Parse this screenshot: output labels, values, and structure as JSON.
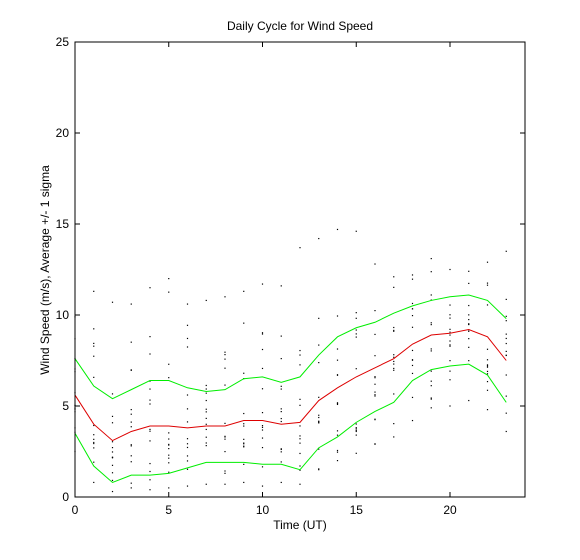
{
  "chart_data": {
    "type": "line",
    "title": "Daily Cycle for Wind Speed",
    "xlabel": "Time (UT)",
    "ylabel": "Wind Speed (m/s), Average +/- 1 sigma",
    "xlim": [
      0,
      24
    ],
    "ylim": [
      0,
      25
    ],
    "xticks": [
      0,
      5,
      10,
      15,
      20
    ],
    "yticks": [
      0,
      5,
      10,
      15,
      20,
      25
    ],
    "x": [
      0,
      1,
      2,
      3,
      4,
      5,
      6,
      7,
      8,
      9,
      10,
      11,
      12,
      13,
      14,
      15,
      16,
      17,
      18,
      19,
      20,
      21,
      22,
      23
    ],
    "series": [
      {
        "name": "",
        "color": "#00ee00",
        "values": [
          7.6,
          6.1,
          5.4,
          5.9,
          6.4,
          6.4,
          6.0,
          5.8,
          5.9,
          6.5,
          6.6,
          6.3,
          6.6,
          7.8,
          8.8,
          9.3,
          9.6,
          10.1,
          10.5,
          10.8,
          11.0,
          11.1,
          10.8,
          9.8
        ]
      },
      {
        "name": "",
        "color": "#dd0000",
        "values": [
          5.6,
          4.0,
          3.1,
          3.6,
          3.9,
          3.9,
          3.8,
          3.9,
          3.9,
          4.2,
          4.2,
          4.0,
          4.1,
          5.3,
          6.0,
          6.6,
          7.1,
          7.6,
          8.4,
          8.9,
          9.0,
          9.2,
          8.8,
          7.5
        ]
      },
      {
        "name": "",
        "color": "#00ee00",
        "values": [
          3.5,
          1.7,
          0.8,
          1.2,
          1.2,
          1.3,
          1.6,
          1.9,
          1.9,
          1.9,
          1.8,
          1.8,
          1.5,
          2.7,
          3.3,
          4.1,
          4.7,
          5.2,
          6.4,
          7.0,
          7.2,
          7.3,
          6.7,
          5.2
        ]
      }
    ],
    "scatter": {
      "color": "#000000",
      "min": [
        2.5,
        0.8,
        0.3,
        0.5,
        0.4,
        0.5,
        0.6,
        0.7,
        0.7,
        0.8,
        0.6,
        0.8,
        0.7,
        1.5,
        2.0,
        2.4,
        2.9,
        3.3,
        4.2,
        4.9,
        5.0,
        5.3,
        4.8,
        3.6
      ],
      "max": [
        9.9,
        11.3,
        10.7,
        10.6,
        11.5,
        12.0,
        10.6,
        10.8,
        11.0,
        11.3,
        11.7,
        11.6,
        13.7,
        14.2,
        14.7,
        14.6,
        12.8,
        12.1,
        12.2,
        13.1,
        12.5,
        12.4,
        12.9,
        13.5
      ],
      "points_per_hour": 14
    },
    "grid": false,
    "legend": "none"
  }
}
